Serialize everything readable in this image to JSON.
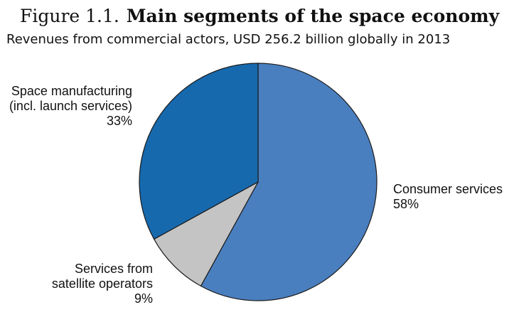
{
  "figure": {
    "number": "Figure 1.1.",
    "title": "Main segments of the space economy",
    "subtitle": "Revenues from commercial actors, USD 256.2 billion globally in 2013"
  },
  "chart_data": {
    "type": "pie",
    "title": "Main segments of the space economy",
    "subtitle": "Revenues from commercial actors, USD 256.2 billion globally in 2013",
    "start": "12 o'clock",
    "direction": "clockwise",
    "slices": [
      {
        "label_lines": [
          "Consumer services"
        ],
        "value": 58,
        "value_label": "58%",
        "color": "#4a7fbf"
      },
      {
        "label_lines": [
          "Services from",
          "satellite operators"
        ],
        "value": 9,
        "value_label": "9%",
        "color": "#c4c4c4"
      },
      {
        "label_lines": [
          "Space manufacturing",
          "(incl. launch services)"
        ],
        "value": 33,
        "value_label": "33%",
        "color": "#1769ad"
      }
    ],
    "slice_border_color": "#1a1a1a",
    "legend": "none"
  }
}
